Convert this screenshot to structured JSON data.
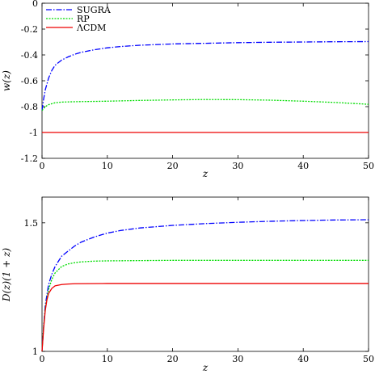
{
  "chart_data": [
    {
      "type": "line",
      "xlabel": "z",
      "ylabel": "w(z)",
      "xlim": [
        0,
        50
      ],
      "ylim": [
        -1.2,
        0
      ],
      "xticks": [
        "0",
        "10",
        "20",
        "30",
        "40",
        "50"
      ],
      "yticks": [
        "0",
        "-0.2",
        "-0.4",
        "-0.6",
        "-0.8",
        "-1",
        "-1.2"
      ],
      "legend": {
        "placement": "top-left"
      },
      "grid": false,
      "series": [
        {
          "name": "SUGRA",
          "color": "#0000ff",
          "dash": "dash-dot",
          "x": [
            0,
            0.25,
            0.5,
            1,
            1.5,
            2,
            3,
            4,
            5,
            6,
            8,
            10,
            12,
            15,
            20,
            25,
            30,
            35,
            40,
            45,
            50
          ],
          "y": [
            -0.83,
            -0.74,
            -0.67,
            -0.58,
            -0.52,
            -0.48,
            -0.44,
            -0.415,
            -0.395,
            -0.38,
            -0.36,
            -0.345,
            -0.335,
            -0.325,
            -0.315,
            -0.31,
            -0.305,
            -0.302,
            -0.3,
            -0.298,
            -0.297
          ]
        },
        {
          "name": "RP",
          "color": "#00dd00",
          "dash": "dotted",
          "x": [
            0,
            0.5,
            1,
            2,
            3,
            5,
            10,
            15,
            20,
            25,
            30,
            35,
            40,
            45,
            50
          ],
          "y": [
            -0.83,
            -0.8,
            -0.785,
            -0.77,
            -0.765,
            -0.762,
            -0.758,
            -0.752,
            -0.748,
            -0.745,
            -0.746,
            -0.75,
            -0.758,
            -0.768,
            -0.782
          ]
        },
        {
          "name": "ΛCDM",
          "color": "#ee0000",
          "dash": "solid",
          "x": [
            0,
            50
          ],
          "y": [
            -1,
            -1
          ]
        }
      ]
    },
    {
      "type": "line",
      "xlabel": "z",
      "ylabel": "D(z)(1 + z)",
      "xlim": [
        0,
        50
      ],
      "ylim": [
        1,
        1.6
      ],
      "xticks": [
        "0",
        "10",
        "20",
        "30",
        "40",
        "50"
      ],
      "yticks": [
        "1",
        "1.5"
      ],
      "grid": false,
      "series": [
        {
          "name": "SUGRA",
          "color": "#0000ff",
          "dash": "dash-dot",
          "x": [
            0,
            0.25,
            0.5,
            1,
            1.5,
            2,
            3,
            4,
            5,
            6,
            8,
            10,
            12,
            15,
            20,
            25,
            30,
            35,
            40,
            45,
            50
          ],
          "y": [
            1.0,
            1.1,
            1.18,
            1.26,
            1.3,
            1.33,
            1.37,
            1.39,
            1.41,
            1.425,
            1.445,
            1.46,
            1.47,
            1.48,
            1.49,
            1.497,
            1.502,
            1.506,
            1.509,
            1.511,
            1.512
          ]
        },
        {
          "name": "RP",
          "color": "#00dd00",
          "dash": "dotted",
          "x": [
            0,
            0.25,
            0.5,
            1,
            1.5,
            2,
            3,
            4,
            5,
            6,
            8,
            10,
            15,
            20,
            30,
            40,
            50
          ],
          "y": [
            1.0,
            1.1,
            1.17,
            1.24,
            1.28,
            1.305,
            1.33,
            1.34,
            1.345,
            1.348,
            1.351,
            1.352,
            1.353,
            1.354,
            1.354,
            1.354,
            1.354
          ]
        },
        {
          "name": "ΛCDM",
          "color": "#ee0000",
          "dash": "solid",
          "x": [
            0,
            0.25,
            0.5,
            0.75,
            1,
            1.5,
            2,
            3,
            4,
            5,
            10,
            20,
            30,
            40,
            50
          ],
          "y": [
            1.0,
            1.09,
            1.16,
            1.2,
            1.225,
            1.245,
            1.255,
            1.26,
            1.262,
            1.263,
            1.264,
            1.264,
            1.264,
            1.264,
            1.264
          ]
        }
      ]
    }
  ]
}
